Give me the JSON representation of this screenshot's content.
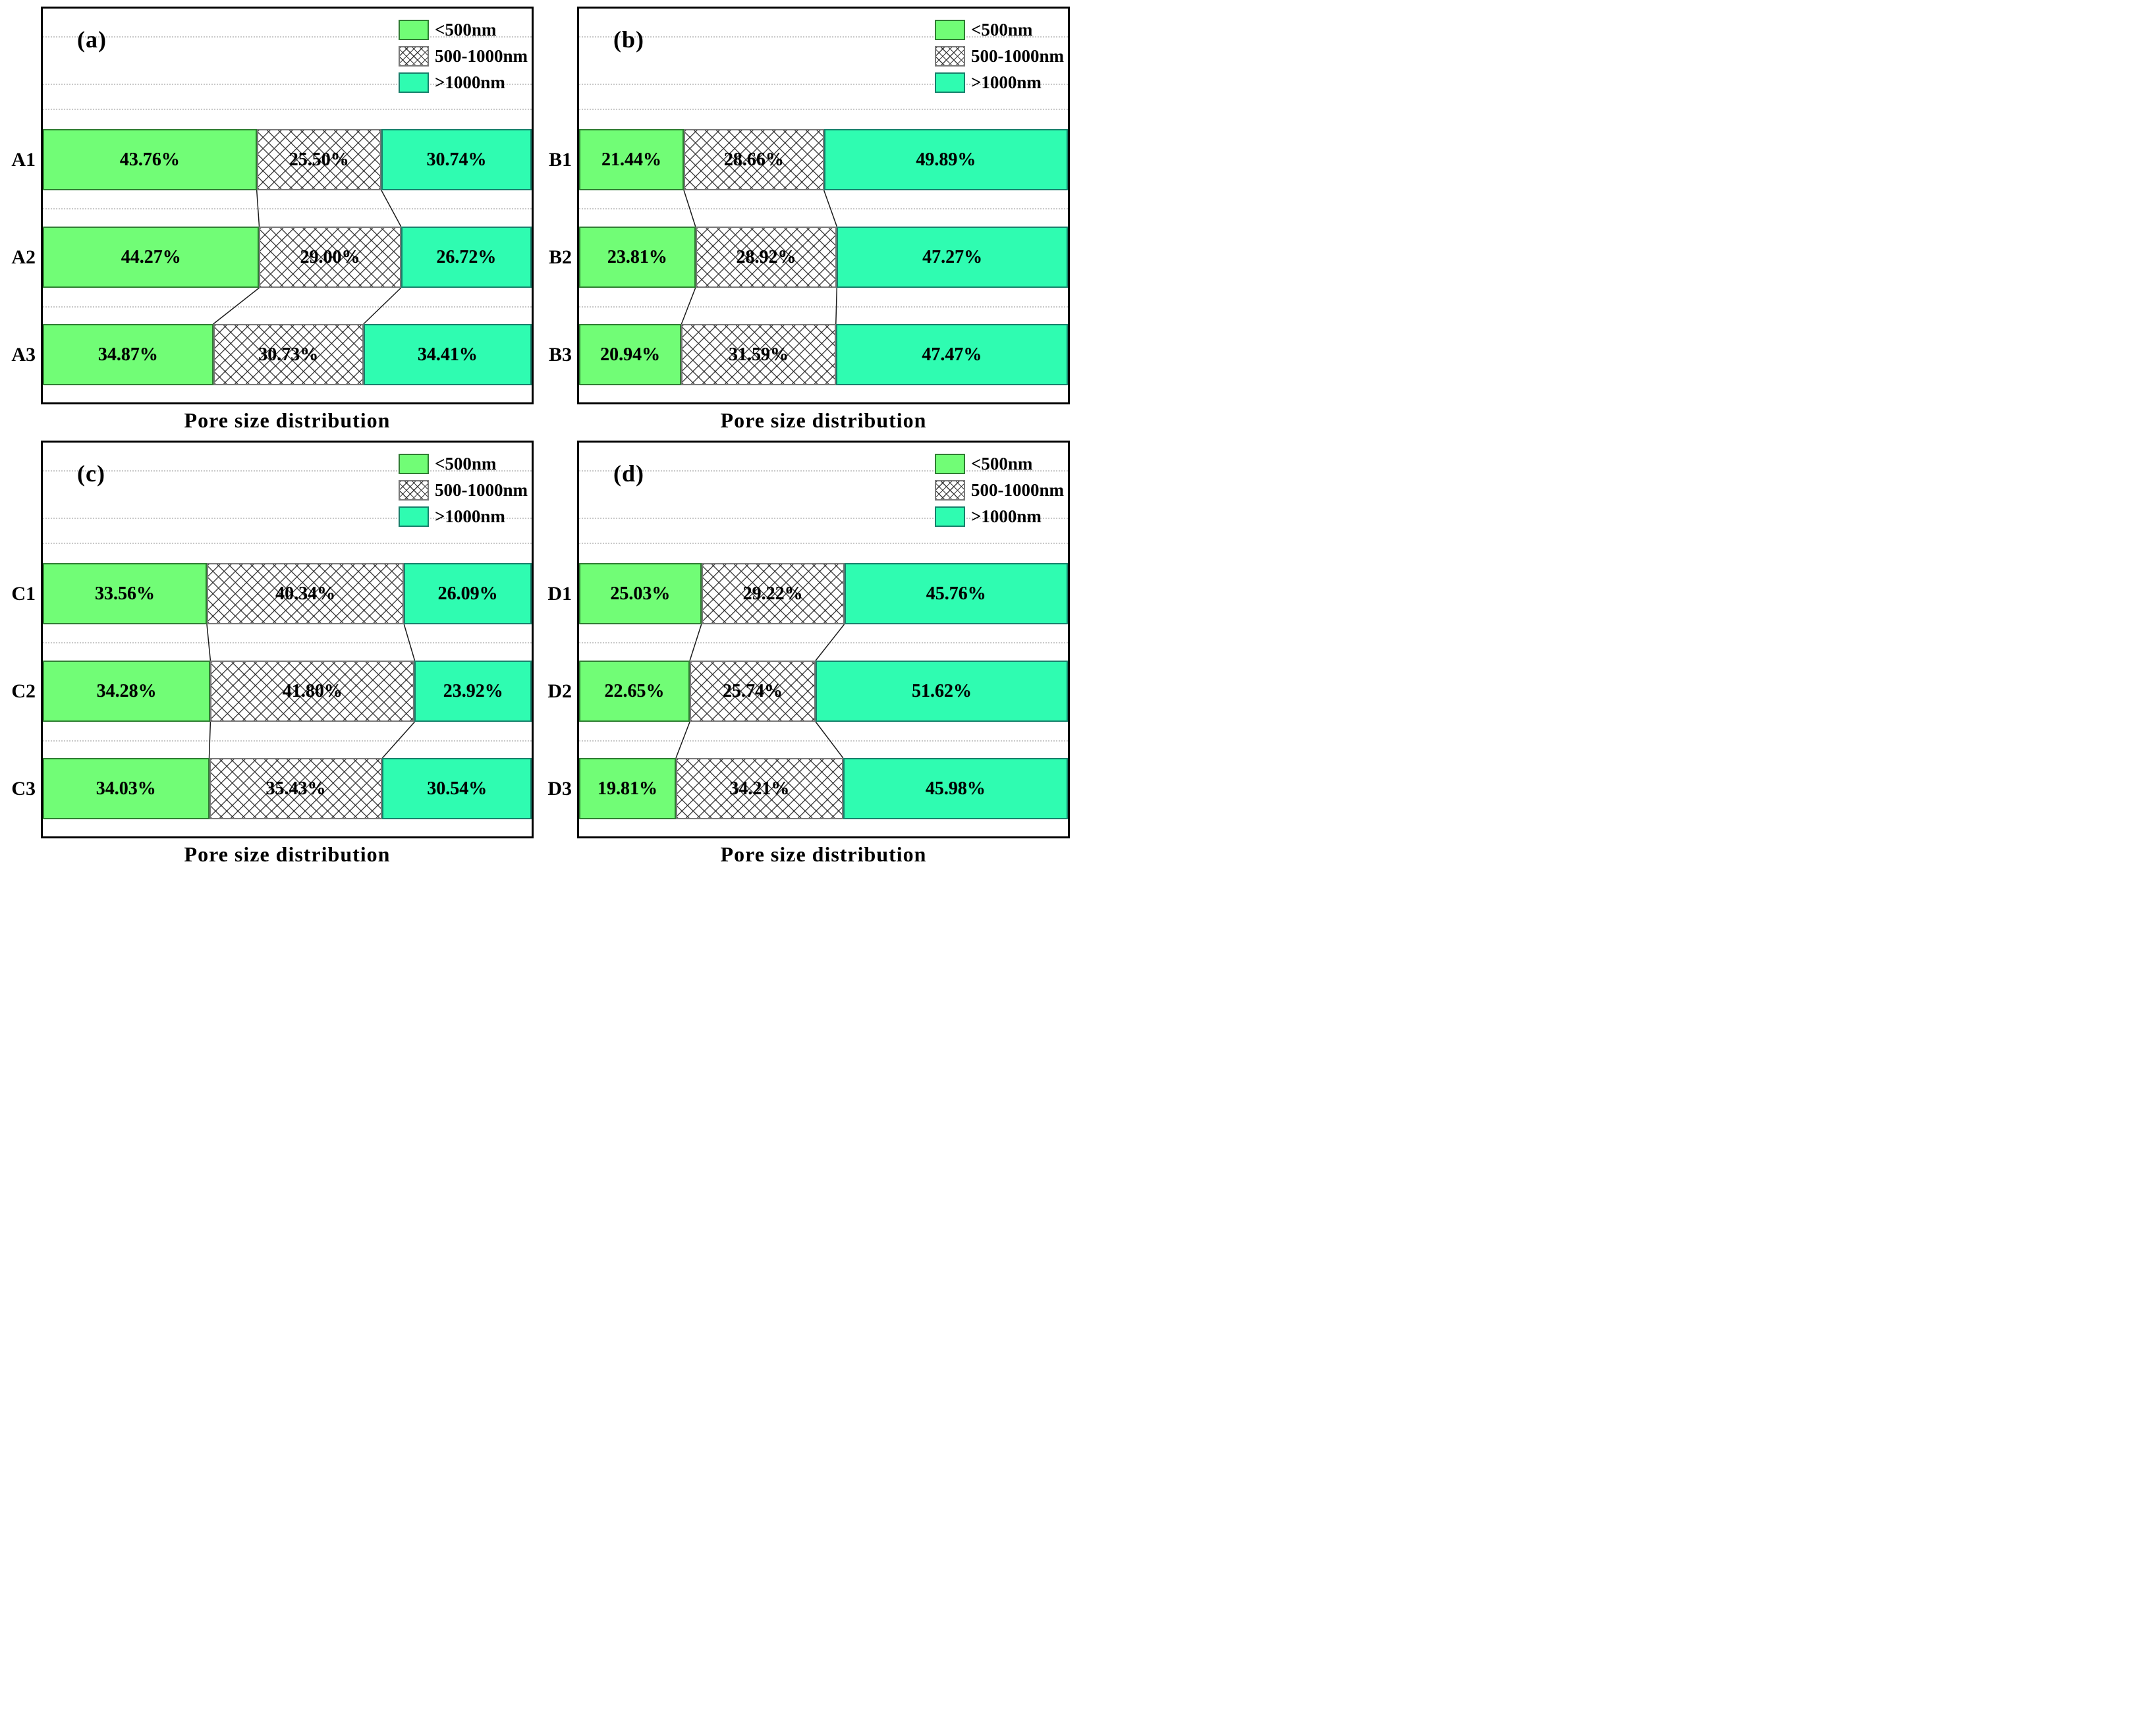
{
  "legend": [
    {
      "label": "<500nm",
      "fill": "#71FD76",
      "edge": "#2F7D32",
      "hatch": false
    },
    {
      "label": "500-1000nm",
      "fill": "#FFFFFF",
      "edge": "#787878",
      "hatch": true
    },
    {
      "label": ">1000nm",
      "fill": "#2FFCB1",
      "edge": "#17806B",
      "hatch": false
    }
  ],
  "colors": {
    "plot_border": "#000000",
    "connector_line": "#1a1a1a",
    "gridline": "#c9c9c9",
    "hatch_line": "#282828"
  },
  "chart_data": [
    {
      "type": "bar",
      "orientation": "horizontal-stacked",
      "panel_label": "(a)",
      "xlabel": "Pore size distribution",
      "categories": [
        "A1",
        "A2",
        "A3"
      ],
      "series": [
        {
          "name": "<500nm",
          "values": [
            43.76,
            44.27,
            34.87
          ]
        },
        {
          "name": "500-1000nm",
          "values": [
            25.5,
            29.0,
            30.73
          ]
        },
        {
          "name": ">1000nm",
          "values": [
            30.74,
            26.72,
            34.41
          ]
        }
      ],
      "value_labels": [
        [
          "43.76%",
          "25.50%",
          "30.74%"
        ],
        [
          "44.27%",
          "29.00%",
          "26.72%"
        ],
        [
          "34.87%",
          "30.73%",
          "34.41%"
        ]
      ],
      "xlim": [
        0,
        100
      ],
      "grid": "dotted-horizontal",
      "legend_position": "upper-right"
    },
    {
      "type": "bar",
      "orientation": "horizontal-stacked",
      "panel_label": "(b)",
      "xlabel": "Pore size distribution",
      "categories": [
        "B1",
        "B2",
        "B3"
      ],
      "series": [
        {
          "name": "<500nm",
          "values": [
            21.44,
            23.81,
            20.94
          ]
        },
        {
          "name": "500-1000nm",
          "values": [
            28.66,
            28.92,
            31.59
          ]
        },
        {
          "name": ">1000nm",
          "values": [
            49.89,
            47.27,
            47.47
          ]
        }
      ],
      "value_labels": [
        [
          "21.44%",
          "28.66%",
          "49.89%"
        ],
        [
          "23.81%",
          "28.92%",
          "47.27%"
        ],
        [
          "20.94%",
          "31.59%",
          "47.47%"
        ]
      ],
      "xlim": [
        0,
        100
      ],
      "grid": "dotted-horizontal",
      "legend_position": "upper-right"
    },
    {
      "type": "bar",
      "orientation": "horizontal-stacked",
      "panel_label": "(c)",
      "xlabel": "Pore size distribution",
      "categories": [
        "C1",
        "C2",
        "C3"
      ],
      "series": [
        {
          "name": "<500nm",
          "values": [
            33.56,
            34.28,
            34.03
          ]
        },
        {
          "name": "500-1000nm",
          "values": [
            40.34,
            41.8,
            35.43
          ]
        },
        {
          "name": ">1000nm",
          "values": [
            26.09,
            23.92,
            30.54
          ]
        }
      ],
      "value_labels": [
        [
          "33.56%",
          "40.34%",
          "26.09%"
        ],
        [
          "34.28%",
          "41.80%",
          "23.92%"
        ],
        [
          "34.03%",
          "35.43%",
          "30.54%"
        ]
      ],
      "xlim": [
        0,
        100
      ],
      "grid": "dotted-horizontal",
      "legend_position": "upper-right"
    },
    {
      "type": "bar",
      "orientation": "horizontal-stacked",
      "panel_label": "(d)",
      "xlabel": "Pore size distribution",
      "categories": [
        "D1",
        "D2",
        "D3"
      ],
      "series": [
        {
          "name": "<500nm",
          "values": [
            25.03,
            22.65,
            19.81
          ]
        },
        {
          "name": "500-1000nm",
          "values": [
            29.22,
            25.74,
            34.21
          ]
        },
        {
          "name": ">1000nm",
          "values": [
            45.76,
            51.62,
            45.98
          ]
        }
      ],
      "value_labels": [
        [
          "25.03%",
          "29.22%",
          "45.76%"
        ],
        [
          "22.65%",
          "25.74%",
          "51.62%"
        ],
        [
          "19.81%",
          "34.21%",
          "45.98%"
        ]
      ],
      "xlim": [
        0,
        100
      ],
      "grid": "dotted-horizontal",
      "legend_position": "upper-right"
    }
  ]
}
